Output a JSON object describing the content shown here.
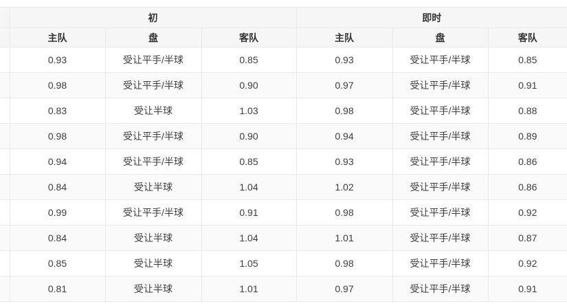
{
  "table": {
    "groups": [
      {
        "label": "初",
        "columns": [
          "主队",
          "盘",
          "客队"
        ]
      },
      {
        "label": "即时",
        "columns": [
          "主队",
          "盘",
          "客队"
        ]
      }
    ],
    "rows": [
      {
        "cells": [
          "0.93",
          "受让平手/半球",
          "0.85",
          "0.93",
          "受让平手/半球",
          "0.85"
        ]
      },
      {
        "cells": [
          "0.98",
          "受让平手/半球",
          "0.90",
          "0.97",
          "受让平手/半球",
          "0.91"
        ]
      },
      {
        "cells": [
          "0.83",
          "受让半球",
          "1.03",
          "0.98",
          "受让平手/半球",
          "0.88"
        ]
      },
      {
        "cells": [
          "0.98",
          "受让平手/半球",
          "0.90",
          "0.94",
          "受让平手/半球",
          "0.89"
        ]
      },
      {
        "cells": [
          "0.94",
          "受让平手/半球",
          "0.85",
          "0.93",
          "受让平手/半球",
          "0.86"
        ]
      },
      {
        "cells": [
          "0.84",
          "受让半球",
          "1.04",
          "1.02",
          "受让平手/半球",
          "0.86"
        ]
      },
      {
        "cells": [
          "0.99",
          "受让平手/半球",
          "0.91",
          "0.98",
          "受让平手/半球",
          "0.92"
        ]
      },
      {
        "cells": [
          "0.84",
          "受让半球",
          "1.04",
          "1.01",
          "受让平手/半球",
          "0.87"
        ]
      },
      {
        "cells": [
          "0.85",
          "受让半球",
          "1.05",
          "0.98",
          "受让平手/半球",
          "0.92"
        ]
      },
      {
        "cells": [
          "0.81",
          "受让半球",
          "1.01",
          "0.97",
          "受让平手/半球",
          "0.91"
        ]
      }
    ],
    "colors": {
      "header_bg": "#f6f6f7",
      "alt_row_bg": "#fafafa",
      "border": "#e9e9eb",
      "header_text": "#333333",
      "body_text": "#3c3c3f"
    }
  }
}
